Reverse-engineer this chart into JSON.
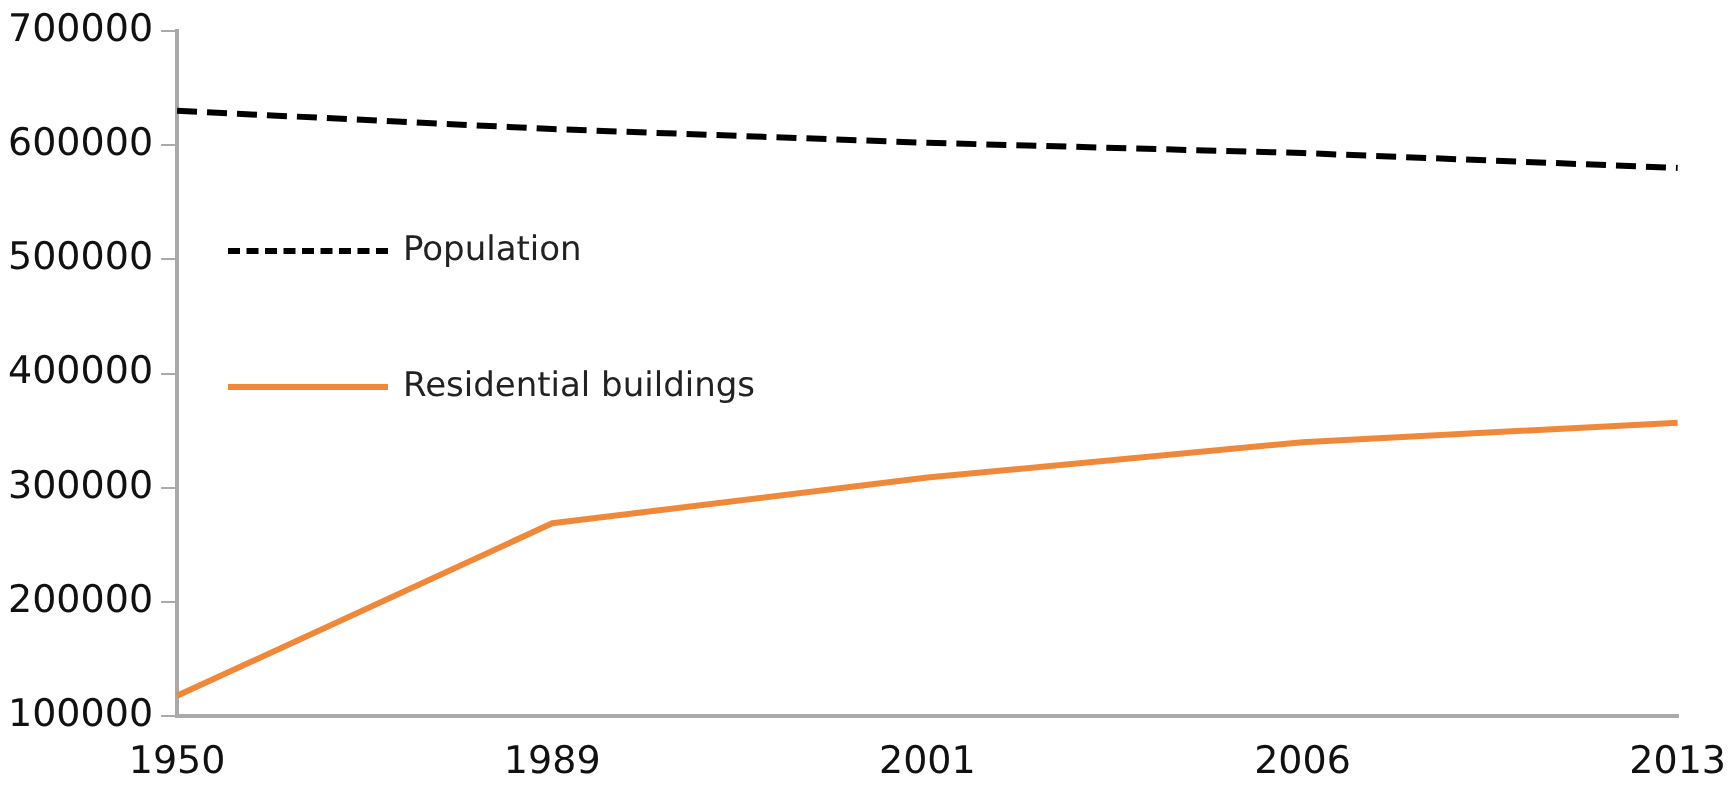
{
  "chart_data": {
    "type": "line",
    "categories": [
      "1950",
      "1989",
      "2001",
      "2006",
      "2013"
    ],
    "series": [
      {
        "name": "Population",
        "color": "#000000",
        "line_style": "dashed",
        "values": [
          630000,
          614000,
          602000,
          593000,
          580000
        ]
      },
      {
        "name": "Residential buildings",
        "color": "#f0883a",
        "line_style": "solid",
        "values": [
          118000,
          269000,
          309000,
          340000,
          357000
        ]
      }
    ],
    "ylim": [
      100000,
      700000
    ],
    "yticks": [
      100000,
      200000,
      300000,
      400000,
      500000,
      600000,
      700000
    ],
    "grid": false,
    "legend": "left",
    "marker": "none"
  }
}
